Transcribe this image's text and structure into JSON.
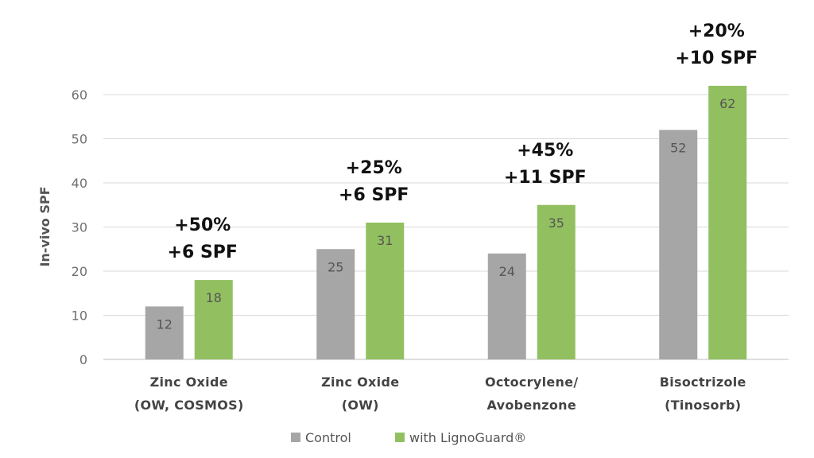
{
  "chart_data": {
    "type": "bar",
    "ylabel": "In-vivo SPF",
    "ylim": [
      0,
      60
    ],
    "yticks": [
      0,
      10,
      20,
      30,
      40,
      50,
      60
    ],
    "grid": true,
    "legend_position": "bottom-center",
    "categories": [
      [
        "Zinc Oxide",
        "(OW, COSMOS)"
      ],
      [
        "Zinc Oxide",
        "(OW)"
      ],
      [
        "Octocrylene/",
        "Avobenzone"
      ],
      [
        "Bisoctrizole",
        "(Tinosorb)"
      ]
    ],
    "series": [
      {
        "name": "Control",
        "color": "#a6a6a6",
        "values": [
          12,
          25,
          24,
          52
        ]
      },
      {
        "name": "with LignoGuard®",
        "color": "#92c060",
        "values": [
          18,
          31,
          35,
          62
        ]
      }
    ],
    "annotations": [
      [
        "+50%",
        "+6 SPF"
      ],
      [
        "+25%",
        "+6 SPF"
      ],
      [
        "+45%",
        "+11 SPF"
      ],
      [
        "+20%",
        "+10 SPF"
      ]
    ]
  }
}
